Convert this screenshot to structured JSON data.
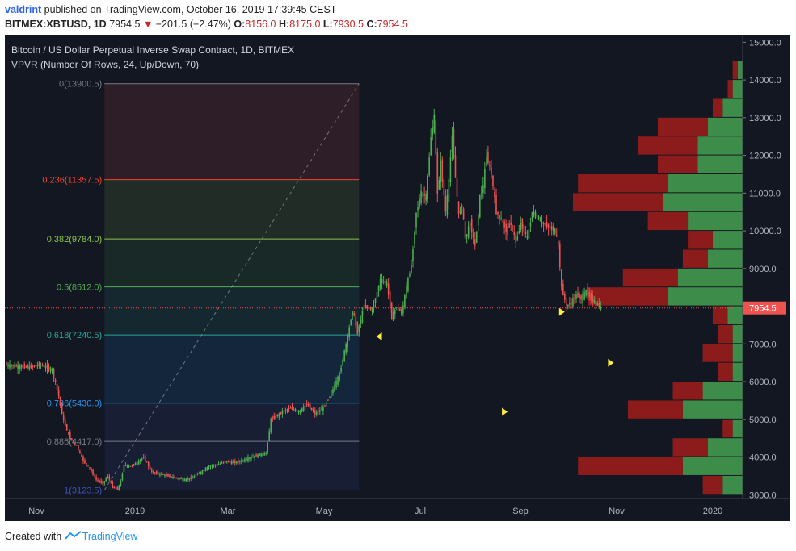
{
  "header": {
    "author": "valdrint",
    "published": "published on TradingView.com, October 16, 2019 17:39:45 CEST",
    "symbol": "BITMEX:XBTUSD, 1D",
    "last": "7954.5",
    "change_arrow": "▼",
    "change": "−201.5 (−2.47%)",
    "o_label": "O:",
    "o": "8156.0",
    "h_label": "H:",
    "h": "8175.0",
    "l_label": "L:",
    "l": "7930.5",
    "c_label": "C:",
    "c": "7954.5"
  },
  "legend": {
    "title": "Bitcoin / US Dollar Perpetual Inverse Swap Contract, 1D, BITMEX",
    "indicator": "VPVR (Number Of Rows, 24, Up/Down, 70)"
  },
  "footer": {
    "created": "Created with",
    "brand": "TradingView",
    "brand_icon": "tradingview-logo-icon"
  },
  "colors": {
    "up": "#4caf50",
    "down": "#ef5350",
    "bg": "#131722",
    "vp_up": "#3d8c4a",
    "vp_down": "#8c1c1c",
    "marker": "#ffeb3b"
  },
  "chart_data": {
    "type": "candlestick",
    "price_axis": {
      "ticks": [
        "3000.0",
        "4000.0",
        "5000.0",
        "6000.0",
        "7000.0",
        "8000.0",
        "9000.0",
        "10000.0",
        "11000.0",
        "12000.0",
        "13000.0",
        "14000.0",
        "15000.0"
      ],
      "ylim": [
        2900,
        15200
      ],
      "current_price_label": "7954.5"
    },
    "time_axis": {
      "ticks": [
        "Nov",
        "2019",
        "Mar",
        "May",
        "Jul",
        "Sep",
        "Nov",
        "2020"
      ]
    },
    "fib_levels": [
      {
        "label": "0(13900.5)",
        "price": 13900.5,
        "color": "#787b86"
      },
      {
        "label": "0.236(11357.5)",
        "price": 11357.5,
        "color": "#f44336"
      },
      {
        "label": "0.382(9784.0)",
        "price": 9784.0,
        "color": "#8bc34a"
      },
      {
        "label": "0.5(8512.0)",
        "price": 8512.0,
        "color": "#4caf50"
      },
      {
        "label": "0.618(7240.5)",
        "price": 7240.5,
        "color": "#26a69a"
      },
      {
        "label": "0.786(5430.0)",
        "price": 5430.0,
        "color": "#2196f3"
      },
      {
        "label": "0.886(4417.0)",
        "price": 4417.0,
        "color": "#787b86"
      },
      {
        "label": "1(3123.5)",
        "price": 3123.5,
        "color": "#3f51b5"
      }
    ],
    "price_path_daily": [
      [
        0,
        6450
      ],
      [
        8,
        6400
      ],
      [
        15,
        6380
      ],
      [
        22,
        6450
      ],
      [
        29,
        6300
      ],
      [
        33,
        5600
      ],
      [
        36,
        4950
      ],
      [
        40,
        4500
      ],
      [
        44,
        4300
      ],
      [
        48,
        3900
      ],
      [
        52,
        3700
      ],
      [
        56,
        3400
      ],
      [
        60,
        3300
      ],
      [
        63,
        3500
      ],
      [
        66,
        3200
      ],
      [
        69,
        3150
      ],
      [
        71,
        3350
      ],
      [
        73,
        3800
      ],
      [
        77,
        3750
      ],
      [
        81,
        3850
      ],
      [
        85,
        4000
      ],
      [
        90,
        3600
      ],
      [
        95,
        3550
      ],
      [
        100,
        3500
      ],
      [
        105,
        3450
      ],
      [
        110,
        3400
      ],
      [
        115,
        3450
      ],
      [
        120,
        3600
      ],
      [
        125,
        3750
      ],
      [
        130,
        3800
      ],
      [
        135,
        3880
      ],
      [
        140,
        3850
      ],
      [
        145,
        3900
      ],
      [
        150,
        3980
      ],
      [
        155,
        4050
      ],
      [
        160,
        4100
      ],
      [
        163,
        5000
      ],
      [
        167,
        5100
      ],
      [
        170,
        5200
      ],
      [
        175,
        5300
      ],
      [
        180,
        5200
      ],
      [
        185,
        5400
      ],
      [
        190,
        5150
      ],
      [
        195,
        5300
      ],
      [
        200,
        5700
      ],
      [
        205,
        6200
      ],
      [
        210,
        7200
      ],
      [
        213,
        7900
      ],
      [
        216,
        7300
      ],
      [
        220,
        8000
      ],
      [
        225,
        7900
      ],
      [
        230,
        8700
      ],
      [
        234,
        8600
      ],
      [
        237,
        7700
      ],
      [
        240,
        8000
      ],
      [
        243,
        7800
      ],
      [
        246,
        8500
      ],
      [
        249,
        9100
      ],
      [
        252,
        10500
      ],
      [
        255,
        11000
      ],
      [
        258,
        10900
      ],
      [
        261,
        12500
      ],
      [
        263,
        13000
      ],
      [
        265,
        11000
      ],
      [
        267,
        11800
      ],
      [
        270,
        10500
      ],
      [
        272,
        11300
      ],
      [
        274,
        12600
      ],
      [
        276,
        11400
      ],
      [
        278,
        10400
      ],
      [
        280,
        10700
      ],
      [
        282,
        9800
      ],
      [
        285,
        10200
      ],
      [
        288,
        9600
      ],
      [
        291,
        10900
      ],
      [
        293,
        11200
      ],
      [
        295,
        12000
      ],
      [
        298,
        11500
      ],
      [
        301,
        10500
      ],
      [
        304,
        10300
      ],
      [
        307,
        10000
      ],
      [
        310,
        10200
      ],
      [
        313,
        9700
      ],
      [
        316,
        10200
      ],
      [
        320,
        9800
      ],
      [
        323,
        10500
      ],
      [
        326,
        10400
      ],
      [
        329,
        10200
      ],
      [
        333,
        10100
      ],
      [
        337,
        10000
      ],
      [
        339,
        9600
      ],
      [
        341,
        8500
      ],
      [
        344,
        8000
      ],
      [
        347,
        8100
      ],
      [
        350,
        8300
      ],
      [
        353,
        8200
      ],
      [
        356,
        8400
      ],
      [
        359,
        8200
      ],
      [
        362,
        8100
      ],
      [
        365,
        7954.5
      ]
    ],
    "vpvr_rows": [
      {
        "price_low": 3000,
        "price_high": 3500,
        "up": 4,
        "down": 4
      },
      {
        "price_low": 3500,
        "price_high": 4000,
        "up": 12,
        "down": 21
      },
      {
        "price_low": 4000,
        "price_high": 4500,
        "up": 7,
        "down": 7
      },
      {
        "price_low": 4500,
        "price_high": 5000,
        "up": 2,
        "down": 2
      },
      {
        "price_low": 5000,
        "price_high": 5500,
        "up": 12,
        "down": 11
      },
      {
        "price_low": 5500,
        "price_high": 6000,
        "up": 8,
        "down": 6
      },
      {
        "price_low": 6000,
        "price_high": 6500,
        "up": 2,
        "down": 3
      },
      {
        "price_low": 6500,
        "price_high": 7000,
        "up": 2,
        "down": 6
      },
      {
        "price_low": 7000,
        "price_high": 7500,
        "up": 2,
        "down": 3
      },
      {
        "price_low": 7500,
        "price_high": 8000,
        "up": 3,
        "down": 3
      },
      {
        "price_low": 8000,
        "price_high": 8500,
        "up": 15,
        "down": 16
      },
      {
        "price_low": 8500,
        "price_high": 9000,
        "up": 13,
        "down": 11
      },
      {
        "price_low": 9000,
        "price_high": 9500,
        "up": 7,
        "down": 5
      },
      {
        "price_low": 9500,
        "price_high": 10000,
        "up": 6,
        "down": 5
      },
      {
        "price_low": 10000,
        "price_high": 10500,
        "up": 11,
        "down": 8
      },
      {
        "price_low": 10500,
        "price_high": 11000,
        "up": 16,
        "down": 18
      },
      {
        "price_low": 11000,
        "price_high": 11500,
        "up": 15,
        "down": 18
      },
      {
        "price_low": 11500,
        "price_high": 12000,
        "up": 9,
        "down": 8
      },
      {
        "price_low": 12000,
        "price_high": 12500,
        "up": 9,
        "down": 12
      },
      {
        "price_low": 12500,
        "price_high": 13000,
        "up": 7,
        "down": 10
      },
      {
        "price_low": 13000,
        "price_high": 13500,
        "up": 4,
        "down": 2
      },
      {
        "price_low": 13500,
        "price_high": 14000,
        "up": 2,
        "down": 1
      },
      {
        "price_low": 14000,
        "price_high": 14500,
        "up": 1,
        "down": 1
      },
      {
        "price_low": 14500,
        "price_high": 15000,
        "up": 0,
        "down": 0
      }
    ],
    "markers": [
      {
        "day": 228,
        "price": 7200
      },
      {
        "day": 340,
        "price": 7850
      },
      {
        "day": 305,
        "price": 5200
      },
      {
        "day": 370,
        "price": 6500
      }
    ]
  }
}
